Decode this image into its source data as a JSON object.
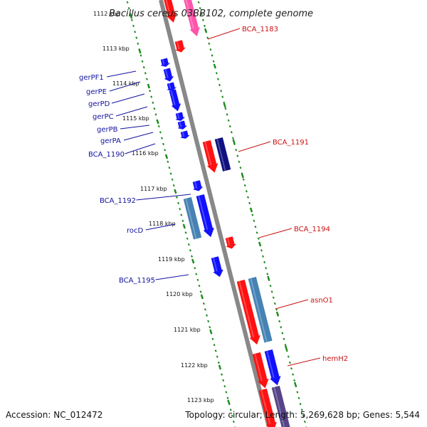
{
  "title": "Bacillus cereus 03BB102, complete genome",
  "accession": "Accession: NC_012472",
  "summary": "Topology: circular; Length: 5,269,628 bp; Genes: 5,544",
  "colors": {
    "backbone": "#888888",
    "tick": "#1a8a1a",
    "label_left": "#1212a0",
    "label_right": "#cc1111",
    "red": "#ff1111",
    "pink": "#ff55aa",
    "blue": "#1111ff",
    "navy": "#101080",
    "steelblue": "#4682b4",
    "slate": "#554488"
  },
  "kbp_ticks": [
    "1112 kbp",
    "1113 kbp",
    "1114 kbp",
    "1115 kbp",
    "1116 kbp",
    "1117 kbp",
    "1118 kbp",
    "1119 kbp",
    "1120 kbp",
    "1121 kbp",
    "1122 kbp",
    "1123 kbp"
  ],
  "left_labels": [
    "gerPF1",
    "gerPE",
    "gerPD",
    "gerPC",
    "gerPB",
    "gerPA",
    "BCA_1190",
    "BCA_1192",
    "rocD",
    "BCA_1195"
  ],
  "right_labels": [
    "BCA_1183",
    "BCA_1191",
    "BCA_1194",
    "asnO1",
    "hemH2"
  ]
}
